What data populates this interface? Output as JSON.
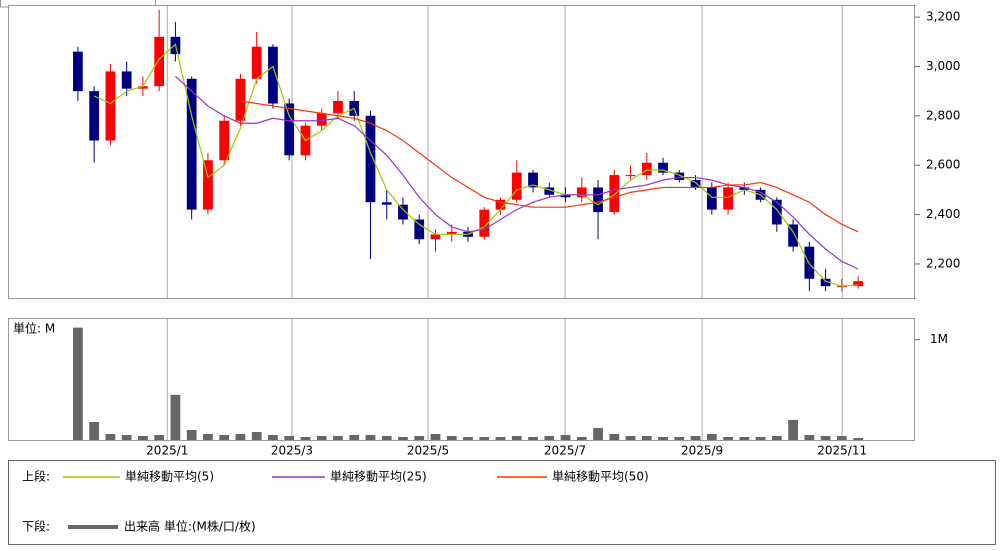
{
  "chart_data": [
    {
      "type": "candlestick",
      "open": [
        3060,
        2900,
        2700,
        2980,
        2910,
        2920,
        3120,
        2950,
        2420,
        2620,
        2780,
        2950,
        3080,
        2850,
        2640,
        2760,
        2810,
        2860,
        2800,
        2450,
        2440,
        2380,
        2300,
        2320,
        2330,
        2310,
        2420,
        2460,
        2570,
        2510,
        2480,
        2470,
        2510,
        2410,
        2560,
        2560,
        2610,
        2570,
        2540,
        2510,
        2420,
        2510,
        2500,
        2460,
        2360,
        2270,
        2140,
        2110,
        2110
      ],
      "high": [
        3080,
        2920,
        3010,
        3020,
        2960,
        3230,
        3180,
        2960,
        2650,
        2800,
        2970,
        3140,
        3090,
        2870,
        2770,
        2830,
        2900,
        2900,
        2820,
        2500,
        2470,
        2400,
        2340,
        2360,
        2350,
        2430,
        2470,
        2620,
        2580,
        2530,
        2510,
        2550,
        2540,
        2580,
        2600,
        2650,
        2630,
        2580,
        2560,
        2530,
        2530,
        2530,
        2510,
        2470,
        2380,
        2290,
        2180,
        2140,
        2150
      ],
      "low": [
        2860,
        2610,
        2680,
        2880,
        2880,
        2900,
        3020,
        2380,
        2400,
        2600,
        2760,
        2930,
        2830,
        2620,
        2620,
        2740,
        2790,
        2780,
        2220,
        2380,
        2360,
        2280,
        2250,
        2290,
        2290,
        2300,
        2400,
        2450,
        2490,
        2470,
        2450,
        2450,
        2300,
        2400,
        2540,
        2540,
        2560,
        2530,
        2500,
        2400,
        2400,
        2480,
        2450,
        2330,
        2250,
        2090,
        2090,
        2090,
        2100
      ],
      "close": [
        2900,
        2700,
        2980,
        2910,
        2920,
        3120,
        3050,
        2420,
        2620,
        2780,
        2950,
        3080,
        2850,
        2640,
        2760,
        2810,
        2860,
        2800,
        2450,
        2440,
        2380,
        2300,
        2320,
        2330,
        2310,
        2420,
        2460,
        2570,
        2510,
        2480,
        2470,
        2510,
        2410,
        2560,
        2560,
        2610,
        2570,
        2540,
        2510,
        2420,
        2510,
        2500,
        2460,
        2360,
        2270,
        2140,
        2110,
        2110,
        2130
      ],
      "up_color": "#ff0000",
      "down_color": "#000080",
      "series": [
        {
          "name": "単純移動平均(5)",
          "color": "#99cc00",
          "values": [
            null,
            2880,
            2850,
            2900,
            2920,
            3030,
            3090,
            2800,
            2550,
            2600,
            2750,
            2950,
            3000,
            2800,
            2700,
            2740,
            2800,
            2830,
            2650,
            2500,
            2420,
            2360,
            2320,
            2320,
            2320,
            2350,
            2420,
            2500,
            2520,
            2500,
            2480,
            2480,
            2440,
            2480,
            2540,
            2580,
            2580,
            2560,
            2530,
            2470,
            2470,
            2500,
            2480,
            2420,
            2330,
            2200,
            2130,
            2110,
            2115
          ]
        },
        {
          "name": "単純移動平均(25)",
          "color": "#9933cc",
          "values": [
            null,
            null,
            null,
            null,
            null,
            null,
            2960,
            2900,
            2840,
            2800,
            2770,
            2770,
            2790,
            2780,
            2780,
            2780,
            2790,
            2760,
            2700,
            2640,
            2560,
            2470,
            2400,
            2350,
            2330,
            2340,
            2380,
            2420,
            2450,
            2470,
            2480,
            2480,
            2480,
            2500,
            2510,
            2520,
            2540,
            2550,
            2550,
            2540,
            2520,
            2510,
            2490,
            2450,
            2390,
            2320,
            2260,
            2210,
            2180
          ]
        },
        {
          "name": "単純移動平均(50)",
          "color": "#ff3300",
          "values": [
            null,
            null,
            null,
            null,
            null,
            null,
            null,
            null,
            null,
            null,
            2860,
            2850,
            2840,
            2830,
            2820,
            2810,
            2800,
            2790,
            2770,
            2740,
            2700,
            2650,
            2600,
            2550,
            2510,
            2470,
            2450,
            2440,
            2430,
            2430,
            2430,
            2440,
            2450,
            2470,
            2490,
            2500,
            2510,
            2510,
            2510,
            2510,
            2520,
            2520,
            2530,
            2510,
            2480,
            2450,
            2400,
            2360,
            2330
          ]
        }
      ],
      "xlim": [
        -4.3,
        51.5
      ],
      "xticks": [
        {
          "value": 5.5,
          "label": "2025/1"
        },
        {
          "value": 13.17,
          "label": "2025/3"
        },
        {
          "value": 21.54,
          "label": "2025/5"
        },
        {
          "value": 29.97,
          "label": "2025/7"
        },
        {
          "value": 38.4,
          "label": "2025/9"
        },
        {
          "value": 47.02,
          "label": "2025/11"
        }
      ],
      "ylim": [
        2062,
        3249
      ],
      "yticks": [
        {
          "value": 2200,
          "label": "2,200"
        },
        {
          "value": 2400,
          "label": "2,400"
        },
        {
          "value": 2600,
          "label": "2,600"
        },
        {
          "value": 2800,
          "label": "2,800"
        },
        {
          "value": 3000,
          "label": "3,000"
        },
        {
          "value": 3200,
          "label": "3,200"
        }
      ],
      "legend_label": "上段:"
    },
    {
      "type": "bar",
      "series": [
        {
          "name": "出来高 単位:(M株/口/枚)",
          "color": "#666666",
          "values": [
            1.12,
            0.18,
            0.06,
            0.05,
            0.04,
            0.05,
            0.45,
            0.1,
            0.06,
            0.05,
            0.06,
            0.08,
            0.05,
            0.04,
            0.03,
            0.04,
            0.04,
            0.05,
            0.05,
            0.04,
            0.03,
            0.04,
            0.06,
            0.04,
            0.03,
            0.03,
            0.03,
            0.04,
            0.03,
            0.04,
            0.05,
            0.03,
            0.12,
            0.06,
            0.04,
            0.04,
            0.03,
            0.03,
            0.04,
            0.06,
            0.03,
            0.03,
            0.03,
            0.04,
            0.2,
            0.05,
            0.04,
            0.04,
            0.02
          ]
        }
      ],
      "unit_label": "単位: M",
      "ylim": [
        0,
        1.216
      ],
      "yticks": [
        {
          "value": 1,
          "label": "1M"
        }
      ],
      "legend_label": "下段:"
    }
  ]
}
